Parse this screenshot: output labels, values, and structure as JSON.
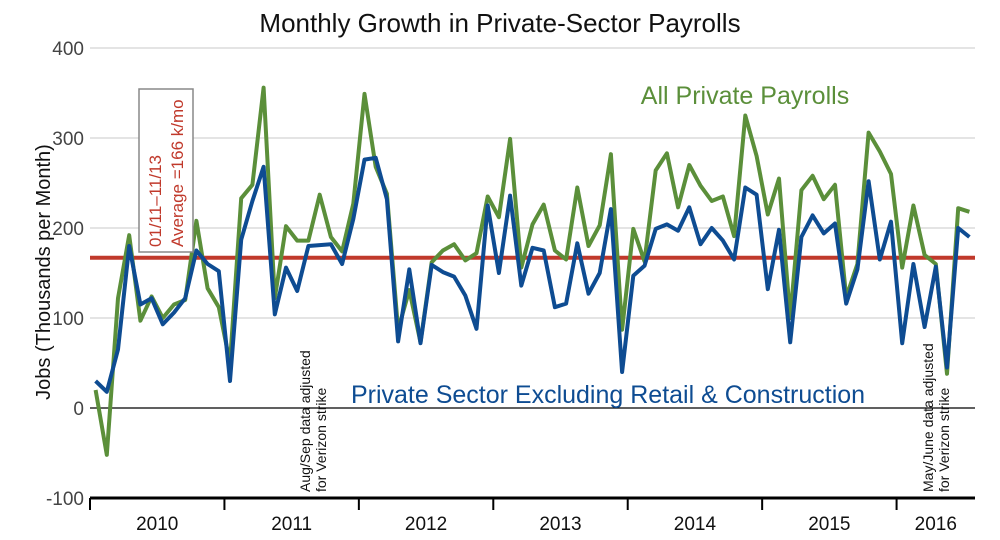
{
  "chart_data": {
    "type": "line",
    "title": "Monthly Growth in Private-Sector Payrolls",
    "ylabel": "Jobs (Thousands per Month)",
    "xlabel": "",
    "ylim": [
      -100,
      400
    ],
    "yticks": [
      -100,
      0,
      100,
      200,
      300,
      400
    ],
    "x_start": "2010-01",
    "x_end": "2016-06",
    "year_labels": [
      "2010",
      "2011",
      "2012",
      "2013",
      "2014",
      "2015",
      "2016"
    ],
    "grid": true,
    "series": [
      {
        "name": "All Private Payrolls",
        "color": "#5b8f3a",
        "values": [
          20,
          -52,
          122,
          192,
          97,
          124,
          100,
          115,
          120,
          208,
          133,
          112,
          50,
          233,
          248,
          356,
          122,
          202,
          186,
          186,
          237,
          190,
          174,
          227,
          349,
          268,
          238,
          87,
          131,
          73,
          162,
          175,
          182,
          164,
          172,
          235,
          212,
          299,
          156,
          204,
          226,
          175,
          165,
          245,
          180,
          203,
          282,
          87,
          199,
          163,
          264,
          283,
          223,
          270,
          247,
          230,
          235,
          191,
          325,
          280,
          215,
          255,
          100,
          242,
          258,
          232,
          248,
          123,
          160,
          306,
          285,
          260,
          156,
          225,
          170,
          160,
          38,
          222,
          218
        ]
      },
      {
        "name": "Private Sector Excluding Retail & Construction",
        "color": "#0e4c92",
        "values": [
          30,
          18,
          65,
          180,
          115,
          122,
          93,
          106,
          122,
          175,
          160,
          152,
          30,
          187,
          230,
          268,
          104,
          156,
          130,
          180,
          181,
          182,
          160,
          210,
          276,
          278,
          232,
          74,
          154,
          72,
          159,
          151,
          146,
          125,
          88,
          225,
          150,
          236,
          136,
          178,
          175,
          112,
          116,
          183,
          127,
          150,
          221,
          40,
          147,
          158,
          199,
          204,
          197,
          223,
          182,
          200,
          186,
          165,
          245,
          237,
          132,
          198,
          73,
          190,
          214,
          194,
          205,
          116,
          154,
          252,
          165,
          207,
          72,
          160,
          90,
          157,
          45,
          200,
          190
        ]
      },
      {
        "name": "Average",
        "color": "#c0392b",
        "values": [
          167
        ]
      }
    ],
    "annotations": [
      {
        "text": "All Private Payrolls",
        "color": "#5b8f3a"
      },
      {
        "text": "Private Sector Excluding Retail & Construction",
        "color": "#0e4c92"
      },
      {
        "text_line1": "01/11–11/13",
        "text_line2": "Average =166 k/mo",
        "color": "#c0392b"
      },
      {
        "text_line1": "Aug/Sep data adjusted",
        "text_line2": "for Verizon strike"
      },
      {
        "text_line1": "May/June data adjusted",
        "text_line2": "for Verizon strike"
      }
    ]
  }
}
